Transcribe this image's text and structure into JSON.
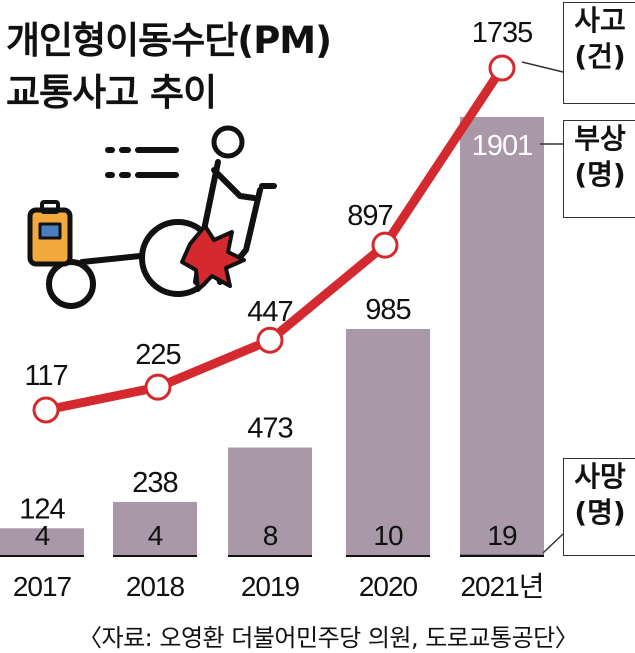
{
  "title_lines": [
    "개인형이동수단(PM)",
    "교통사고 추이"
  ],
  "legend": {
    "accident": [
      "사고",
      "(건)"
    ],
    "injury": [
      "부상",
      "(명)"
    ],
    "death": [
      "사망",
      "(명)"
    ]
  },
  "source": "〈자료: 오영환 더불어민주당 의원, 도로교통공단〉",
  "colors": {
    "bar": "#a898a8",
    "line": "#d42a2f",
    "death_bar": "#111111",
    "text": "#111111"
  },
  "illustration": "person-walking-electric-scooter-icon",
  "chart_data": {
    "type": "bar-line-combo",
    "categories": [
      "2017",
      "2018",
      "2019",
      "2020",
      "2021년"
    ],
    "series": [
      {
        "name": "사고",
        "type": "line",
        "unit": "건",
        "values": [
          117,
          225,
          447,
          897,
          1735
        ]
      },
      {
        "name": "부상",
        "type": "bar",
        "unit": "명",
        "values": [
          124,
          238,
          473,
          985,
          1901
        ]
      },
      {
        "name": "사망",
        "type": "bar",
        "unit": "명",
        "values": [
          4,
          4,
          8,
          10,
          19
        ]
      }
    ],
    "grid": false,
    "legend": "right"
  }
}
